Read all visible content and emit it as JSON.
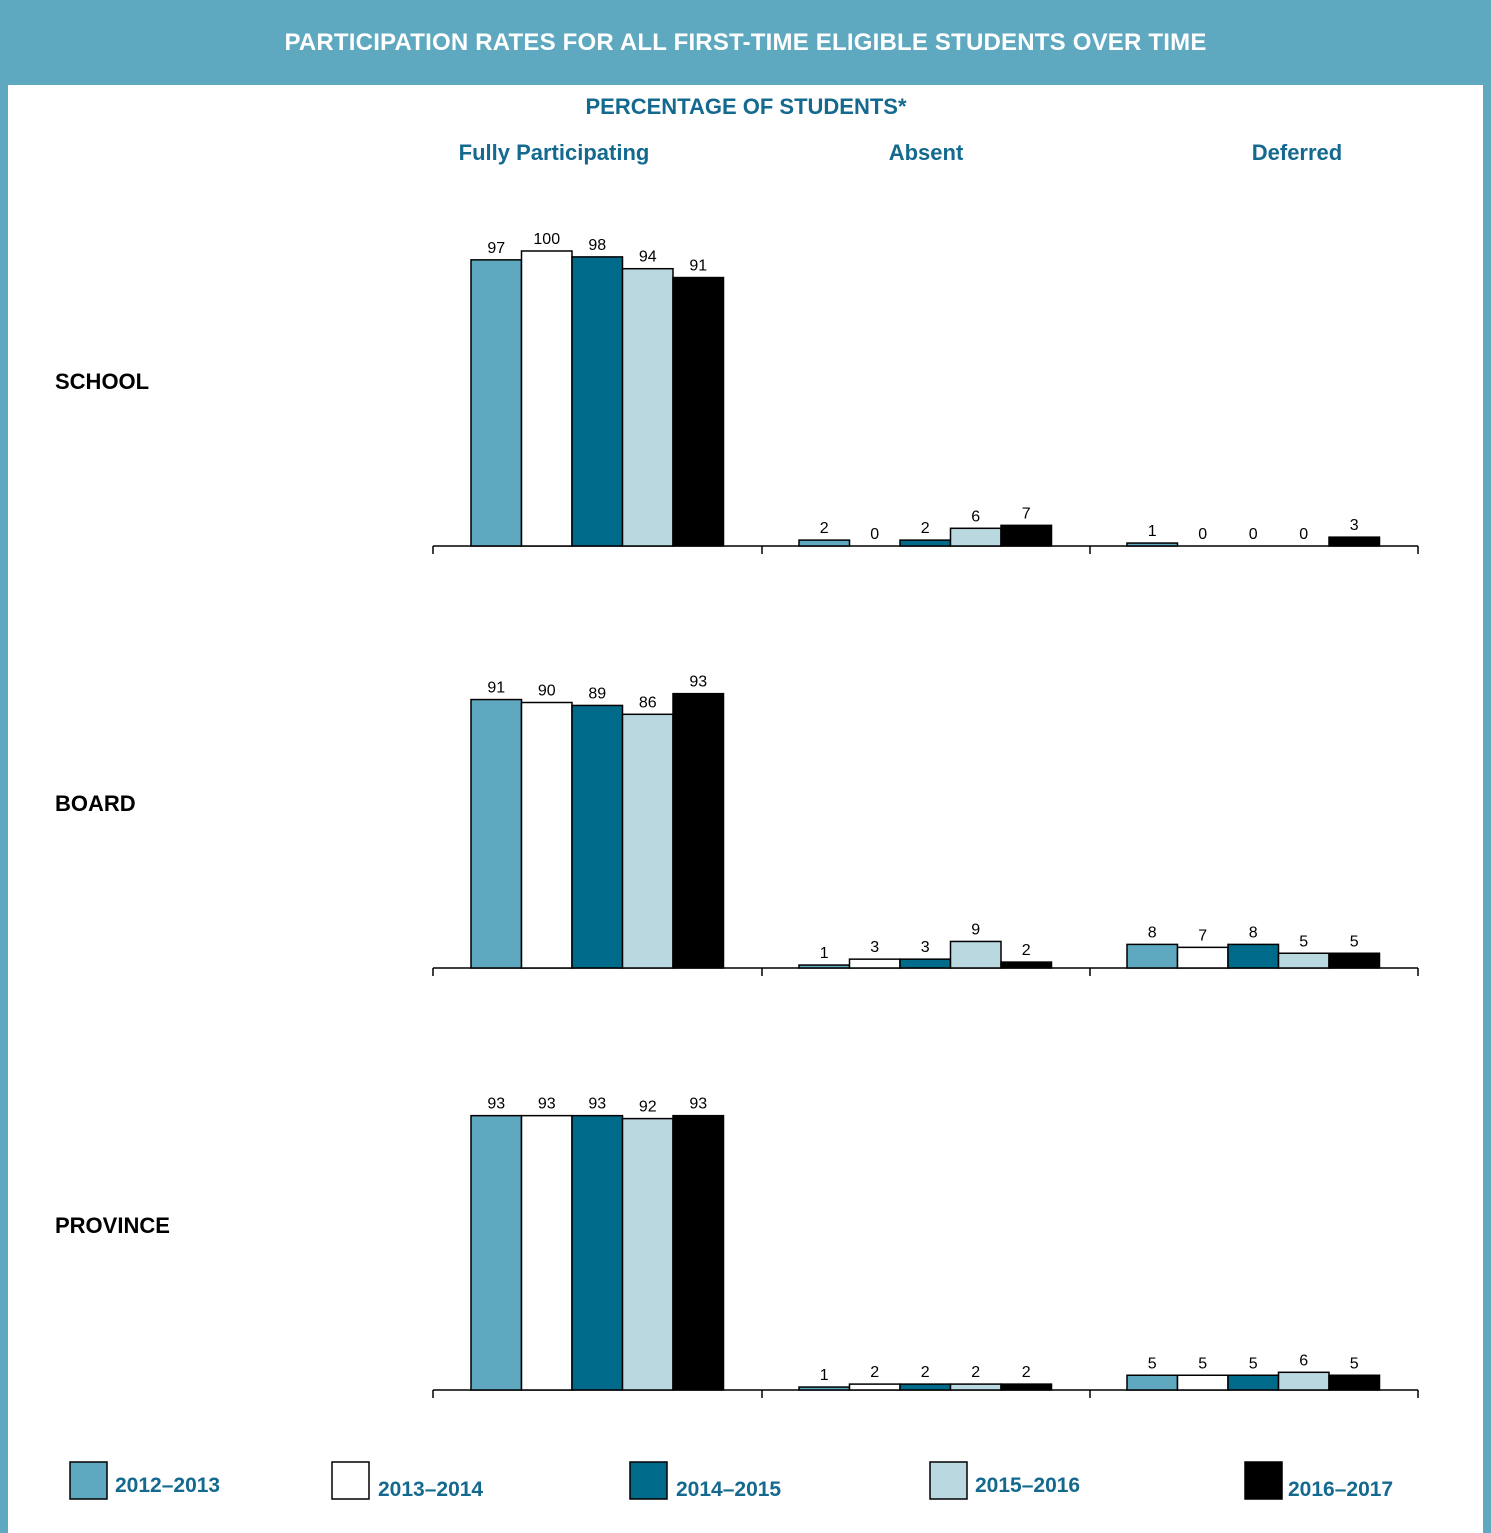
{
  "banner_title": "PARTICIPATION RATES FOR ALL FIRST-TIME ELIGIBLE STUDENTS OVER TIME",
  "colors": {
    "frame": "#5ea9c0",
    "header_text": "#14698f",
    "series": [
      "#5ea9c0",
      "#ffffff",
      "#006a8a",
      "#bad8e0",
      "#000000"
    ]
  },
  "chart_data": {
    "type": "bar",
    "title": "PERCENTAGE OF STUDENTS*",
    "categories": [
      "Fully Participating",
      "Absent",
      "Deferred"
    ],
    "groups": [
      "SCHOOL",
      "BOARD",
      "PROVINCE"
    ],
    "ylim": [
      0,
      100
    ],
    "legend_position": "bottom",
    "grid": false,
    "series": [
      {
        "name": "2012–2013",
        "values": {
          "SCHOOL": [
            97,
            2,
            1
          ],
          "BOARD": [
            91,
            1,
            8
          ],
          "PROVINCE": [
            93,
            1,
            5
          ]
        }
      },
      {
        "name": "2013–2014",
        "values": {
          "SCHOOL": [
            100,
            0,
            0
          ],
          "BOARD": [
            90,
            3,
            7
          ],
          "PROVINCE": [
            93,
            2,
            5
          ]
        }
      },
      {
        "name": "2014–2015",
        "values": {
          "SCHOOL": [
            98,
            2,
            0
          ],
          "BOARD": [
            89,
            3,
            8
          ],
          "PROVINCE": [
            93,
            2,
            5
          ]
        }
      },
      {
        "name": "2015–2016",
        "values": {
          "SCHOOL": [
            94,
            6,
            0
          ],
          "BOARD": [
            86,
            9,
            5
          ],
          "PROVINCE": [
            92,
            2,
            6
          ]
        }
      },
      {
        "name": "2016–2017",
        "values": {
          "SCHOOL": [
            91,
            7,
            3
          ],
          "BOARD": [
            93,
            2,
            5
          ],
          "PROVINCE": [
            93,
            2,
            5
          ]
        }
      }
    ]
  }
}
